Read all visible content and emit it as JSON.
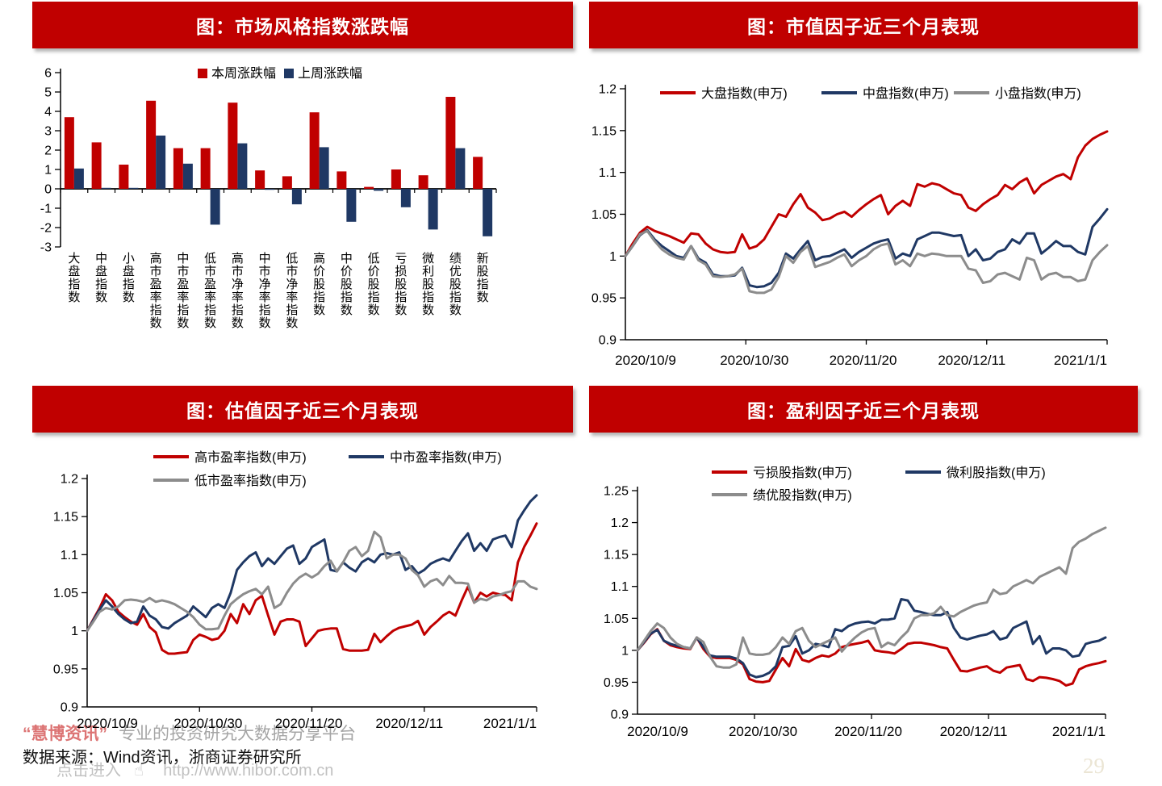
{
  "theme": {
    "panel_red": "#c00000",
    "series_red": "#c00000",
    "series_navy": "#1f3864",
    "series_gray": "#8c8c8c",
    "page_bg": "#ffffff"
  },
  "footer": {
    "brand": "“慧博资讯”",
    "tagline": "专业的投资研究大数据分享平台",
    "source": "数据来源：Wind资讯，浙商证券研究所",
    "link_prefix": "点击进入",
    "link_url": "http://www.hibor.com.cn",
    "hand_icon": "☝",
    "page_number": "29"
  },
  "chart_data": [
    {
      "type": "bar",
      "title": "图：市场风格指数涨跌幅",
      "xlabel": "",
      "ylabel": "",
      "grid": false,
      "legend_position": "top-center",
      "ylim": [
        -3,
        6
      ],
      "yticks": [
        "6",
        "5",
        "4",
        "3",
        "2",
        "1",
        "0",
        "-1",
        "-2",
        "-3"
      ],
      "categories": [
        "大盘指数",
        "中盘指数",
        "小盘指数",
        "高市盈率指数",
        "中市盈率指数",
        "低市盈率指数",
        "高市净率指数",
        "中市净率指数",
        "低市净率指数",
        "高价股指数",
        "中价股指数",
        "低价股指数",
        "亏损股指数",
        "微利股指数",
        "绩优股指数",
        "新股指数"
      ],
      "series": [
        {
          "name": "本周涨跌幅",
          "color": "#c00000",
          "values": [
            3.7,
            2.4,
            1.25,
            4.55,
            2.1,
            2.1,
            4.45,
            0.95,
            0.65,
            3.95,
            0.9,
            0.1,
            1.0,
            0.7,
            4.75,
            1.65
          ]
        },
        {
          "name": "上周涨跌幅",
          "color": "#1f3864",
          "values": [
            1.05,
            0.05,
            0.05,
            2.75,
            1.3,
            -1.85,
            2.35,
            -0.05,
            -0.8,
            2.15,
            -1.7,
            -0.1,
            -0.95,
            -2.1,
            2.1,
            -2.45
          ]
        }
      ]
    },
    {
      "type": "line",
      "title": "图：市值因子近三个月表现",
      "xlabel": "",
      "ylabel": "",
      "grid": false,
      "legend_position": "top",
      "ylim": [
        0.9,
        1.2
      ],
      "yticks": [
        "1.2",
        "1.15",
        "1.1",
        "1.05",
        "1",
        "0.95",
        "0.9"
      ],
      "x_labels": [
        "2020/10/9",
        "2020/10/30",
        "2020/11/20",
        "2020/12/11",
        "2021/1/1"
      ],
      "series": [
        {
          "name": "大盘指数(申万)",
          "color": "#c00000",
          "values": [
            1.0,
            1.015,
            1.028,
            1.035,
            1.03,
            1.027,
            1.024,
            1.02,
            1.016,
            1.027,
            1.026,
            1.015,
            1.008,
            1.005,
            1.004,
            1.005,
            1.026,
            1.009,
            1.012,
            1.02,
            1.035,
            1.05,
            1.047,
            1.062,
            1.074,
            1.058,
            1.052,
            1.043,
            1.045,
            1.05,
            1.053,
            1.047,
            1.055,
            1.062,
            1.068,
            1.073,
            1.05,
            1.06,
            1.066,
            1.06,
            1.086,
            1.083,
            1.087,
            1.085,
            1.08,
            1.075,
            1.073,
            1.058,
            1.054,
            1.062,
            1.068,
            1.073,
            1.085,
            1.08,
            1.088,
            1.093,
            1.075,
            1.085,
            1.09,
            1.095,
            1.098,
            1.092,
            1.118,
            1.132,
            1.14,
            1.145,
            1.149
          ]
        },
        {
          "name": "中盘指数(申万)",
          "color": "#1f3864",
          "values": [
            1.0,
            1.012,
            1.025,
            1.031,
            1.02,
            1.012,
            1.006,
            1.0,
            0.998,
            1.012,
            0.997,
            0.992,
            0.978,
            0.976,
            0.976,
            0.977,
            0.986,
            0.965,
            0.963,
            0.964,
            0.968,
            0.98,
            1.003,
            0.997,
            1.008,
            1.018,
            0.995,
            0.999,
            1.0,
            1.004,
            1.008,
            0.998,
            1.005,
            1.01,
            1.015,
            1.018,
            1.02,
            0.997,
            1.003,
            1.0,
            1.02,
            1.024,
            1.028,
            1.028,
            1.026,
            1.024,
            1.025,
            1.0,
            1.008,
            0.995,
            0.997,
            1.005,
            1.008,
            1.02,
            1.015,
            1.027,
            1.027,
            1.003,
            1.01,
            1.018,
            1.012,
            1.012,
            1.005,
            1.002,
            1.035,
            1.045,
            1.056
          ]
        },
        {
          "name": "小盘指数(申万)",
          "color": "#8c8c8c",
          "values": [
            1.0,
            1.012,
            1.026,
            1.03,
            1.018,
            1.008,
            1.002,
            0.998,
            0.996,
            1.012,
            0.995,
            0.99,
            0.976,
            0.975,
            0.976,
            0.978,
            0.985,
            0.958,
            0.956,
            0.956,
            0.96,
            0.975,
            1.0,
            0.992,
            1.005,
            1.012,
            0.987,
            0.99,
            0.993,
            0.998,
            1.002,
            0.988,
            0.995,
            1.0,
            1.008,
            1.013,
            1.015,
            0.99,
            0.995,
            0.988,
            1.003,
            1.0,
            1.003,
            1.002,
            1.0,
            1.0,
            1.0,
            0.985,
            0.983,
            0.968,
            0.97,
            0.978,
            0.98,
            0.976,
            0.972,
            0.998,
            0.995,
            0.972,
            0.978,
            0.98,
            0.975,
            0.975,
            0.97,
            0.972,
            0.995,
            1.005,
            1.013
          ]
        }
      ]
    },
    {
      "type": "line",
      "title": "图：估值因子近三个月表现",
      "xlabel": "",
      "ylabel": "",
      "grid": false,
      "legend_position": "top",
      "ylim": [
        0.9,
        1.2
      ],
      "yticks": [
        "1.2",
        "1.15",
        "1.1",
        "1.05",
        "1",
        "0.95",
        "0.9"
      ],
      "x_labels": [
        "2020/10/9",
        "2020/10/30",
        "2020/11/20",
        "2020/12/11",
        "2021/1/1"
      ],
      "series": [
        {
          "name": "高市盈率指数(申万)",
          "color": "#c00000",
          "values": [
            1.0,
            1.015,
            1.03,
            1.048,
            1.04,
            1.025,
            1.018,
            1.012,
            1.008,
            1.022,
            1.005,
            0.998,
            0.975,
            0.97,
            0.97,
            0.971,
            0.972,
            0.988,
            0.995,
            0.992,
            0.988,
            0.99,
            1.0,
            1.022,
            1.01,
            1.035,
            1.022,
            1.04,
            1.046,
            1.02,
            0.995,
            1.012,
            1.015,
            1.015,
            1.012,
            0.98,
            0.99,
            1.0,
            1.002,
            1.003,
            1.003,
            0.976,
            0.974,
            0.974,
            0.974,
            0.975,
            0.996,
            0.985,
            0.993,
            1.0,
            1.004,
            1.006,
            1.008,
            1.013,
            0.995,
            1.005,
            1.012,
            1.02,
            1.025,
            1.02,
            1.04,
            1.058,
            1.037,
            1.05,
            1.045,
            1.05,
            1.048,
            1.047,
            1.04,
            1.09,
            1.11,
            1.125,
            1.141
          ]
        },
        {
          "name": "中市盈率指数(申万)",
          "color": "#1f3864",
          "values": [
            1.0,
            1.014,
            1.028,
            1.04,
            1.032,
            1.022,
            1.015,
            1.01,
            1.012,
            1.032,
            1.02,
            1.015,
            1.005,
            1.003,
            1.01,
            1.015,
            1.02,
            1.032,
            1.025,
            1.018,
            1.03,
            1.035,
            1.03,
            1.05,
            1.08,
            1.09,
            1.098,
            1.103,
            1.085,
            1.095,
            1.088,
            1.098,
            1.108,
            1.112,
            1.088,
            1.095,
            1.11,
            1.115,
            1.12,
            1.08,
            1.078,
            1.09,
            1.083,
            1.078,
            1.09,
            1.095,
            1.09,
            1.1,
            1.102,
            1.1,
            1.103,
            1.08,
            1.085,
            1.075,
            1.08,
            1.088,
            1.092,
            1.095,
            1.092,
            1.105,
            1.118,
            1.128,
            1.105,
            1.115,
            1.105,
            1.12,
            1.123,
            1.125,
            1.11,
            1.145,
            1.158,
            1.17,
            1.178
          ]
        },
        {
          "name": "低市盈率指数(申万)",
          "color": "#8c8c8c",
          "values": [
            1.0,
            1.012,
            1.025,
            1.03,
            1.028,
            1.032,
            1.04,
            1.041,
            1.04,
            1.038,
            1.043,
            1.038,
            1.04,
            1.038,
            1.035,
            1.03,
            1.025,
            1.018,
            1.008,
            1.002,
            1.002,
            1.003,
            1.02,
            1.035,
            1.042,
            1.048,
            1.052,
            1.055,
            1.048,
            1.058,
            1.03,
            1.035,
            1.05,
            1.062,
            1.07,
            1.075,
            1.07,
            1.075,
            1.085,
            1.092,
            1.078,
            1.09,
            1.105,
            1.11,
            1.098,
            1.105,
            1.13,
            1.123,
            1.095,
            1.1,
            1.1,
            1.095,
            1.08,
            1.073,
            1.058,
            1.065,
            1.068,
            1.06,
            1.072,
            1.063,
            1.063,
            1.062,
            1.037,
            1.042,
            1.04,
            1.045,
            1.047,
            1.05,
            1.052,
            1.065,
            1.065,
            1.058,
            1.055
          ]
        }
      ]
    },
    {
      "type": "line",
      "title": "图：盈利因子近三个月表现",
      "xlabel": "",
      "ylabel": "",
      "grid": false,
      "legend_position": "top",
      "ylim": [
        0.9,
        1.25
      ],
      "yticks": [
        "1.25",
        "1.2",
        "1.15",
        "1.1",
        "1.05",
        "1",
        "0.95",
        "0.9"
      ],
      "x_labels": [
        "2020/10/9",
        "2020/10/30",
        "2020/11/20",
        "2020/12/11",
        "2021/1/1"
      ],
      "series": [
        {
          "name": "亏损股指数(申万)",
          "color": "#c00000",
          "values": [
            1.0,
            1.012,
            1.025,
            1.033,
            1.015,
            1.008,
            1.005,
            1.003,
            1.002,
            1.02,
            1.002,
            0.99,
            0.988,
            0.988,
            0.988,
            0.985,
            0.978,
            0.955,
            0.951,
            0.95,
            0.952,
            0.97,
            0.988,
            0.975,
            1.002,
            0.985,
            0.982,
            0.988,
            0.992,
            0.99,
            0.995,
            1.005,
            1.008,
            1.01,
            1.012,
            1.015,
            1.0,
            0.998,
            0.997,
            0.995,
            1.002,
            1.01,
            1.012,
            1.012,
            1.01,
            1.008,
            1.005,
            1.003,
            0.985,
            0.968,
            0.967,
            0.97,
            0.973,
            0.975,
            0.968,
            0.965,
            0.973,
            0.975,
            0.977,
            0.955,
            0.952,
            0.958,
            0.957,
            0.955,
            0.952,
            0.945,
            0.948,
            0.97,
            0.975,
            0.978,
            0.98,
            0.983
          ]
        },
        {
          "name": "微利股指数(申万)",
          "color": "#1f3864",
          "values": [
            1.0,
            1.013,
            1.026,
            1.032,
            1.015,
            1.01,
            1.007,
            1.005,
            1.003,
            1.02,
            1.005,
            0.992,
            0.99,
            0.99,
            0.99,
            0.987,
            0.98,
            0.962,
            0.958,
            0.96,
            0.965,
            0.975,
            1.005,
            1.007,
            1.022,
            0.995,
            1.0,
            1.01,
            1.008,
            1.005,
            1.033,
            1.03,
            1.038,
            1.042,
            1.044,
            1.045,
            1.042,
            1.048,
            1.048,
            1.05,
            1.08,
            1.078,
            1.062,
            1.06,
            1.057,
            1.055,
            1.055,
            1.06,
            1.035,
            1.02,
            1.017,
            1.02,
            1.023,
            1.025,
            1.03,
            1.017,
            1.02,
            1.035,
            1.04,
            1.045,
            1.01,
            1.022,
            0.995,
            1.003,
            1.003,
            1.0,
            0.99,
            0.992,
            1.01,
            1.013,
            1.015,
            1.02
          ]
        },
        {
          "name": "绩优股指数(申万)",
          "color": "#8c8c8c",
          "values": [
            1.0,
            1.015,
            1.03,
            1.042,
            1.035,
            1.02,
            1.01,
            1.005,
            1.003,
            1.02,
            1.013,
            0.99,
            0.975,
            0.973,
            0.973,
            0.978,
            1.02,
            0.995,
            0.993,
            0.993,
            0.995,
            1.005,
            1.02,
            1.01,
            1.03,
            1.035,
            1.015,
            1.005,
            1.01,
            1.015,
            1.02,
            0.998,
            1.01,
            1.02,
            1.028,
            1.033,
            1.035,
            1.005,
            1.012,
            1.008,
            1.02,
            1.03,
            1.05,
            1.055,
            1.055,
            1.058,
            1.068,
            1.055,
            1.053,
            1.06,
            1.065,
            1.07,
            1.073,
            1.075,
            1.095,
            1.088,
            1.09,
            1.1,
            1.105,
            1.11,
            1.105,
            1.115,
            1.12,
            1.125,
            1.13,
            1.12,
            1.16,
            1.17,
            1.175,
            1.182,
            1.187,
            1.192
          ]
        }
      ]
    }
  ]
}
